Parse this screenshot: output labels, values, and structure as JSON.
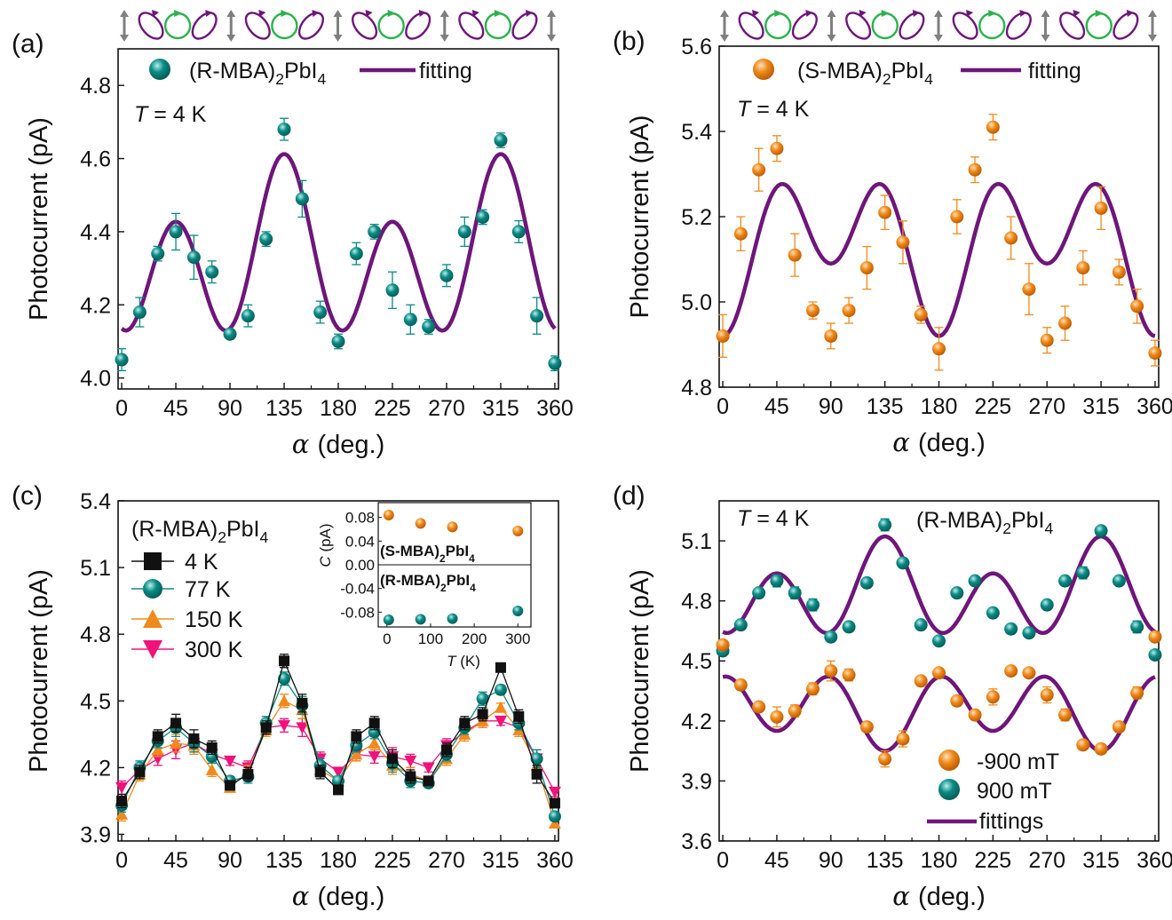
{
  "colors": {
    "teal": "#0b8a84",
    "orange": "#f08a1c",
    "purple": "#6e167a",
    "magenta": "#f0127a",
    "black": "#111111",
    "green_ring": "#2bb24c",
    "arrow_gray": "#7f7f7f"
  },
  "polarization_strip": {
    "sequence": [
      "linear",
      "elliptical-left",
      "circular",
      "elliptical-right",
      "linear",
      "elliptical-left",
      "circular",
      "elliptical-right",
      "linear",
      "elliptical-left",
      "circular",
      "elliptical-right",
      "linear",
      "elliptical-left",
      "circular",
      "elliptical-right",
      "linear"
    ],
    "icons": [
      "double-arrow-icon",
      "ellipse-icon",
      "circle-arrow-icon"
    ]
  },
  "chart_data": [
    {
      "panel": "(a)",
      "type": "scatter",
      "xlabel_symbol": "α",
      "xlabel": "(deg.)",
      "ylabel": "Photocurrent (pA)",
      "xlim": [
        -3,
        363
      ],
      "ylim": [
        3.97,
        4.9
      ],
      "xticks": [
        "0",
        "45",
        "90",
        "135",
        "180",
        "225",
        "270",
        "315",
        "360"
      ],
      "yticks": [
        "4.0",
        "4.2",
        "4.4",
        "4.6",
        "4.8"
      ],
      "annotation_T": "T",
      "annotation_rest": " = 4 K",
      "legend": [
        {
          "kind": "marker",
          "label": "(R-MBA)",
          "sub": "2",
          "label_end": "PbI",
          "sub2": "4"
        },
        {
          "kind": "line",
          "label": "fitting"
        }
      ],
      "series": [
        {
          "name": "(R-MBA)2PbI4",
          "kind": "points",
          "color": "teal",
          "x": [
            0,
            15,
            30,
            45,
            60,
            75,
            90,
            105,
            120,
            135,
            150,
            165,
            180,
            195,
            210,
            225,
            240,
            255,
            270,
            285,
            300,
            315,
            330,
            345,
            360
          ],
          "y": [
            4.05,
            4.18,
            4.34,
            4.4,
            4.33,
            4.29,
            4.12,
            4.17,
            4.38,
            4.68,
            4.49,
            4.18,
            4.1,
            4.34,
            4.4,
            4.24,
            4.16,
            4.14,
            4.28,
            4.4,
            4.44,
            4.65,
            4.4,
            4.17,
            4.04
          ],
          "err": [
            0.03,
            0.04,
            0.02,
            0.05,
            0.06,
            0.03,
            0.01,
            0.03,
            0.02,
            0.03,
            0.05,
            0.03,
            0.02,
            0.03,
            0.02,
            0.05,
            0.04,
            0.02,
            0.03,
            0.04,
            0.02,
            0.02,
            0.03,
            0.05,
            0.02
          ]
        },
        {
          "name": "fitting",
          "kind": "fit",
          "color": "purple",
          "fit": {
            "c": 4.3275,
            "a2": 0.0,
            "a4": -0.1925,
            "b2": -0.0925,
            "b4": 0.0,
            "phase": -30
          }
        }
      ]
    },
    {
      "panel": "(b)",
      "type": "scatter",
      "xlabel_symbol": "α",
      "xlabel": "(deg.)",
      "ylabel": "Photocurrent (pA)",
      "xlim": [
        -3,
        363
      ],
      "ylim": [
        4.8,
        5.6
      ],
      "xticks": [
        "0",
        "45",
        "90",
        "135",
        "180",
        "225",
        "270",
        "315",
        "360"
      ],
      "yticks": [
        "4.8",
        "5.0",
        "5.2",
        "5.4",
        "5.6"
      ],
      "annotation_T": "T",
      "annotation_rest": " = 4 K",
      "legend": [
        {
          "kind": "marker",
          "label": "(S-MBA)",
          "sub": "2",
          "label_end": "PbI",
          "sub2": "4"
        },
        {
          "kind": "line",
          "label": "fitting"
        }
      ],
      "series": [
        {
          "name": "(S-MBA)2PbI4",
          "kind": "points",
          "color": "orange",
          "x": [
            0,
            15,
            30,
            45,
            60,
            75,
            90,
            105,
            120,
            135,
            150,
            165,
            180,
            195,
            210,
            225,
            240,
            255,
            270,
            285,
            300,
            315,
            330,
            345,
            360
          ],
          "y": [
            4.92,
            5.16,
            5.31,
            5.36,
            5.11,
            4.98,
            4.92,
            4.98,
            5.08,
            5.21,
            5.14,
            4.97,
            4.89,
            5.2,
            5.31,
            5.41,
            5.15,
            5.03,
            4.91,
            4.95,
            5.08,
            5.22,
            5.07,
            4.99,
            4.88
          ],
          "err": [
            0.05,
            0.04,
            0.05,
            0.03,
            0.05,
            0.02,
            0.03,
            0.03,
            0.05,
            0.04,
            0.05,
            0.02,
            0.05,
            0.04,
            0.03,
            0.03,
            0.05,
            0.06,
            0.03,
            0.04,
            0.04,
            0.05,
            0.03,
            0.04,
            0.03
          ]
        },
        {
          "name": "fitting",
          "kind": "fit",
          "color": "purple",
          "fit": {
            "c": 5.1375,
            "a2": -0.085,
            "a4": -0.1325,
            "b2": 0.0,
            "b4": 0.0,
            "phase": -30
          }
        }
      ]
    },
    {
      "panel": "(c)",
      "type": "line",
      "xlabel_symbol": "α",
      "xlabel": "(deg.)",
      "ylabel": "Photocurrent (pA)",
      "xlim": [
        -3,
        363
      ],
      "ylim": [
        3.87,
        5.4
      ],
      "xticks": [
        "0",
        "45",
        "90",
        "135",
        "180",
        "225",
        "270",
        "315",
        "360"
      ],
      "yticks": [
        "3.9",
        "4.2",
        "4.5",
        "4.8",
        "5.1",
        "5.4"
      ],
      "legend_title": {
        "label": "(R-MBA)",
        "sub": "2",
        "label_end": "PbI",
        "sub2": "4"
      },
      "legend": [
        {
          "kind": "marker",
          "label": "4 K"
        },
        {
          "kind": "marker",
          "label": "77 K"
        },
        {
          "kind": "marker",
          "label": "150 K"
        },
        {
          "kind": "marker",
          "label": "300 K"
        }
      ],
      "x": [
        0,
        15,
        30,
        45,
        60,
        75,
        90,
        105,
        120,
        135,
        150,
        165,
        180,
        195,
        210,
        225,
        240,
        255,
        270,
        285,
        300,
        315,
        330,
        345,
        360
      ],
      "series": [
        {
          "name": "4 K",
          "marker": "square",
          "color": "black",
          "y": [
            4.05,
            4.18,
            4.34,
            4.4,
            4.33,
            4.29,
            4.12,
            4.17,
            4.38,
            4.68,
            4.49,
            4.18,
            4.1,
            4.34,
            4.4,
            4.24,
            4.16,
            4.14,
            4.28,
            4.4,
            4.44,
            4.65,
            4.43,
            4.17,
            4.04
          ],
          "err": [
            0.03,
            0.03,
            0.03,
            0.04,
            0.04,
            0.03,
            0.02,
            0.03,
            0.03,
            0.03,
            0.04,
            0.03,
            0.02,
            0.03,
            0.03,
            0.04,
            0.03,
            0.02,
            0.03,
            0.03,
            0.03,
            0.02,
            0.03,
            0.04,
            0.02
          ]
        },
        {
          "name": "77 K",
          "marker": "circle",
          "color": "teal",
          "y": [
            4.03,
            4.2,
            4.32,
            4.38,
            4.31,
            4.25,
            4.14,
            4.16,
            4.4,
            4.6,
            4.48,
            4.21,
            4.14,
            4.3,
            4.36,
            4.22,
            4.14,
            4.13,
            4.26,
            4.38,
            4.51,
            4.55,
            4.4,
            4.24,
            3.98
          ],
          "err": [
            0.03,
            0.03,
            0.03,
            0.04,
            0.04,
            0.03,
            0.02,
            0.03,
            0.03,
            0.03,
            0.04,
            0.03,
            0.02,
            0.03,
            0.03,
            0.04,
            0.03,
            0.02,
            0.03,
            0.03,
            0.03,
            0.02,
            0.03,
            0.04,
            0.02
          ]
        },
        {
          "name": "150 K",
          "marker": "triangle-up",
          "color": "orange",
          "y": [
            3.99,
            4.17,
            4.28,
            4.31,
            4.3,
            4.19,
            4.11,
            4.18,
            4.37,
            4.5,
            4.46,
            4.19,
            4.14,
            4.26,
            4.31,
            4.21,
            4.17,
            4.14,
            4.24,
            4.35,
            4.41,
            4.47,
            4.37,
            4.21,
            3.95
          ],
          "err": [
            0.03,
            0.03,
            0.03,
            0.04,
            0.04,
            0.03,
            0.02,
            0.03,
            0.03,
            0.03,
            0.04,
            0.03,
            0.02,
            0.03,
            0.03,
            0.04,
            0.03,
            0.02,
            0.03,
            0.03,
            0.03,
            0.02,
            0.03,
            0.04,
            0.02
          ]
        },
        {
          "name": "300 K",
          "marker": "triangle-down",
          "color": "magenta",
          "y": [
            4.11,
            4.19,
            4.24,
            4.28,
            4.31,
            4.26,
            4.23,
            4.2,
            4.38,
            4.39,
            4.38,
            4.24,
            4.18,
            4.26,
            4.25,
            4.25,
            4.23,
            4.2,
            4.3,
            4.36,
            4.41,
            4.41,
            4.38,
            4.24,
            4.09
          ],
          "err": [
            0.03,
            0.03,
            0.03,
            0.04,
            0.04,
            0.03,
            0.02,
            0.03,
            0.03,
            0.03,
            0.04,
            0.03,
            0.02,
            0.03,
            0.03,
            0.04,
            0.03,
            0.02,
            0.03,
            0.03,
            0.03,
            0.02,
            0.03,
            0.04,
            0.02
          ]
        }
      ],
      "inset": {
        "type": "scatter",
        "xlabel": "T",
        "xlabel_unit": " (K)",
        "ylabel": "C",
        "ylabel_unit": " (pA)",
        "xlim": [
          -20,
          330
        ],
        "ylim": [
          -0.105,
          0.105
        ],
        "xticks": [
          "0",
          "100",
          "200",
          "300"
        ],
        "yticks": [
          "0.08",
          "0.04",
          "0.00",
          "-0.04",
          "-0.08"
        ],
        "label_s": {
          "label": "(S-MBA)",
          "sub": "2",
          "label_end": "PbI",
          "sub2": "4"
        },
        "label_r": {
          "label": "(R-MBA)",
          "sub": "2",
          "label_end": "PbI",
          "sub2": "4"
        },
        "series": [
          {
            "name": "(S-MBA)2PbI4",
            "color": "orange",
            "x": [
              4,
              77,
              150,
              300
            ],
            "y": [
              0.084,
              0.07,
              0.064,
              0.057
            ]
          },
          {
            "name": "(R-MBA)2PbI4",
            "color": "teal",
            "x": [
              4,
              77,
              150,
              300
            ],
            "y": [
              -0.093,
              -0.092,
              -0.091,
              -0.078
            ]
          }
        ]
      }
    },
    {
      "panel": "(d)",
      "type": "scatter",
      "xlabel_symbol": "α",
      "xlabel": "(deg.)",
      "ylabel": "Photocurrent (pA)",
      "xlim": [
        -3,
        363
      ],
      "ylim": [
        3.6,
        5.3
      ],
      "xticks": [
        "0",
        "45",
        "90",
        "135",
        "180",
        "225",
        "270",
        "315",
        "360"
      ],
      "yticks": [
        "3.6",
        "3.9",
        "4.2",
        "4.5",
        "4.8",
        "5.1"
      ],
      "annotation_T": "T",
      "annotation_rest": " = 4 K",
      "title": {
        "label": "(R-MBA)",
        "sub": "2",
        "label_end": "PbI",
        "sub2": "4"
      },
      "legend": [
        {
          "kind": "marker",
          "label": "-900 mT"
        },
        {
          "kind": "marker",
          "label": " 900 mT"
        },
        {
          "kind": "line",
          "label": "fittings"
        }
      ],
      "series": [
        {
          "name": "900 mT",
          "kind": "points",
          "color": "teal",
          "x": [
            0,
            15,
            30,
            45,
            60,
            75,
            90,
            105,
            120,
            135,
            150,
            165,
            180,
            195,
            210,
            225,
            240,
            255,
            270,
            285,
            300,
            315,
            330,
            345,
            360
          ],
          "y": [
            4.55,
            4.68,
            4.84,
            4.9,
            4.84,
            4.78,
            4.62,
            4.67,
            4.89,
            5.18,
            4.99,
            4.68,
            4.6,
            4.84,
            4.9,
            4.74,
            4.66,
            4.64,
            4.78,
            4.9,
            4.94,
            5.15,
            4.9,
            4.67,
            4.53
          ],
          "err": [
            0.02,
            0.02,
            0.02,
            0.03,
            0.03,
            0.03,
            0.02,
            0.02,
            0.02,
            0.03,
            0.02,
            0.02,
            0.02,
            0.02,
            0.02,
            0.02,
            0.02,
            0.02,
            0.02,
            0.02,
            0.03,
            0.02,
            0.02,
            0.03,
            0.02
          ]
        },
        {
          "name": "-900 mT",
          "kind": "points",
          "color": "orange",
          "x": [
            0,
            15,
            30,
            45,
            60,
            75,
            90,
            105,
            120,
            135,
            150,
            165,
            180,
            195,
            210,
            225,
            240,
            255,
            270,
            285,
            300,
            315,
            330,
            345,
            360
          ],
          "y": [
            4.58,
            4.38,
            4.27,
            4.22,
            4.25,
            4.36,
            4.45,
            4.43,
            4.17,
            4.01,
            4.11,
            4.4,
            4.44,
            4.3,
            4.23,
            4.32,
            4.45,
            4.44,
            4.33,
            4.23,
            4.08,
            4.06,
            4.17,
            4.34,
            4.62
          ],
          "err": [
            0.02,
            0.02,
            0.02,
            0.05,
            0.03,
            0.03,
            0.05,
            0.03,
            0.02,
            0.04,
            0.04,
            0.02,
            0.02,
            0.02,
            0.02,
            0.04,
            0.02,
            0.02,
            0.04,
            0.03,
            0.02,
            0.02,
            0.02,
            0.03,
            0.02
          ]
        },
        {
          "name": "fit 900 mT",
          "kind": "fit",
          "color": "purple",
          "fit": {
            "c": 4.8375,
            "a2": 0.0,
            "a4": -0.1925,
            "b2": -0.0925,
            "b4": 0.0,
            "phase": -30
          }
        },
        {
          "name": "fit -900 mT",
          "kind": "fit",
          "color": "purple",
          "fit": {
            "c": 4.26,
            "a2": 0.0,
            "a4": 0.16,
            "b2": 0.05,
            "b4": 0.0,
            "phase": -30
          }
        }
      ]
    }
  ]
}
